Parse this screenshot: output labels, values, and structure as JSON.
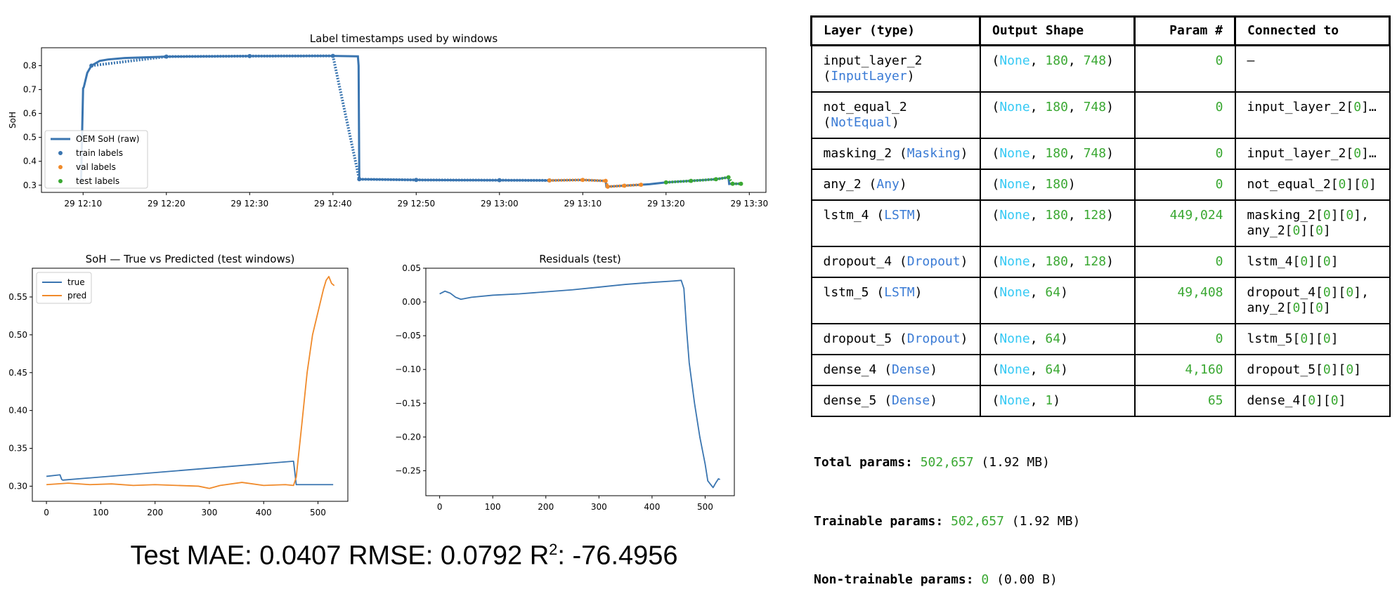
{
  "chart_data": [
    {
      "type": "line",
      "title": "Label timestamps used by windows",
      "xlabel": "",
      "ylabel": "SoH",
      "ylim": [
        0.27,
        0.875
      ],
      "yticks": [
        "0.3",
        "0.4",
        "0.5",
        "0.6",
        "0.7",
        "0.8"
      ],
      "xticks": [
        "29 12:10",
        "29 12:20",
        "29 12:30",
        "29 12:40",
        "29 12:50",
        "29 13:00",
        "29 13:10",
        "29 13:20",
        "29 13:30"
      ],
      "legend": "lower-left",
      "series": [
        {
          "name": "OEM SoH (raw)",
          "x": [
            "12:09:45",
            "12:10:00",
            "12:10:05",
            "12:10:30",
            "12:11:00",
            "12:12:00",
            "12:13:00",
            "12:15:00",
            "12:20:00",
            "12:30:00",
            "12:40:00",
            "12:43:00",
            "12:43:05",
            "12:43:10",
            "12:50:00",
            "13:06:00",
            "13:10:00",
            "13:12:45",
            "13:12:50",
            "13:17:00",
            "13:18:00",
            "13:20:00",
            "13:26:00",
            "13:27:30",
            "13:27:35",
            "13:28:00",
            "13:29:00"
          ],
          "y": [
            0.305,
            0.705,
            0.71,
            0.77,
            0.8,
            0.82,
            0.826,
            0.832,
            0.838,
            0.84,
            0.841,
            0.839,
            0.8,
            0.325,
            0.322,
            0.32,
            0.322,
            0.318,
            0.294,
            0.302,
            0.304,
            0.312,
            0.325,
            0.333,
            0.305,
            0.306,
            0.306
          ]
        },
        {
          "name": "train labels",
          "x": [
            "12:11:00",
            "12:20:00",
            "12:30:00",
            "12:40:00",
            "12:43:10",
            "12:50:00",
            "13:00:00",
            "13:06:00"
          ],
          "y": [
            0.8,
            0.838,
            0.84,
            0.841,
            0.325,
            0.322,
            0.321,
            0.32
          ]
        },
        {
          "name": "val labels",
          "x": [
            "13:06:00",
            "13:10:00",
            "13:12:45",
            "13:13:00",
            "13:15:00",
            "13:17:00"
          ],
          "y": [
            0.32,
            0.322,
            0.318,
            0.294,
            0.298,
            0.302
          ]
        },
        {
          "name": "test labels",
          "x": [
            "13:20:00",
            "13:23:00",
            "13:26:00",
            "13:27:30",
            "13:28:00",
            "13:29:00"
          ],
          "y": [
            0.312,
            0.318,
            0.325,
            0.333,
            0.306,
            0.306
          ]
        }
      ]
    },
    {
      "type": "line",
      "title": "SoH — True vs Predicted (test windows)",
      "xlabel": "",
      "ylabel": "",
      "xlim": [
        -26,
        555
      ],
      "ylim": [
        0.28,
        0.588
      ],
      "xticks": [
        0,
        100,
        200,
        300,
        400,
        500
      ],
      "yticks": [
        0.3,
        0.35,
        0.4,
        0.45,
        0.5,
        0.55
      ],
      "legend": "upper-left",
      "series": [
        {
          "name": "true",
          "x": [
            0,
            25,
            28,
            30,
            455,
            460,
            528
          ],
          "y": [
            0.313,
            0.315,
            0.309,
            0.308,
            0.333,
            0.302,
            0.302
          ]
        },
        {
          "name": "pred",
          "x": [
            0,
            40,
            80,
            120,
            160,
            200,
            240,
            280,
            300,
            320,
            360,
            400,
            440,
            455,
            460,
            470,
            480,
            490,
            500,
            510,
            515,
            520,
            525,
            530
          ],
          "y": [
            0.302,
            0.304,
            0.302,
            0.303,
            0.301,
            0.302,
            0.301,
            0.3,
            0.297,
            0.301,
            0.305,
            0.301,
            0.302,
            0.301,
            0.312,
            0.38,
            0.45,
            0.5,
            0.53,
            0.56,
            0.572,
            0.577,
            0.568,
            0.565
          ]
        }
      ]
    },
    {
      "type": "line",
      "title": "Residuals (test)",
      "xlabel": "",
      "ylabel": "",
      "xlim": [
        -26,
        555
      ],
      "ylim": [
        -0.287,
        0.05
      ],
      "xticks": [
        0,
        100,
        200,
        300,
        400,
        500
      ],
      "yticks": [
        "0.05",
        "0.00",
        "−0.05",
        "−0.10",
        "−0.15",
        "−0.20",
        "−0.25"
      ],
      "series": [
        {
          "name": "",
          "x": [
            0,
            10,
            20,
            30,
            40,
            60,
            100,
            150,
            200,
            250,
            300,
            350,
            400,
            440,
            455,
            460,
            465,
            470,
            480,
            490,
            500,
            505,
            510,
            515,
            520,
            525,
            528
          ],
          "y": [
            0.012,
            0.016,
            0.013,
            0.007,
            0.004,
            0.007,
            0.01,
            0.012,
            0.015,
            0.018,
            0.022,
            0.026,
            0.029,
            0.031,
            0.032,
            0.02,
            -0.04,
            -0.09,
            -0.15,
            -0.2,
            -0.24,
            -0.265,
            -0.27,
            -0.275,
            -0.268,
            -0.262,
            -0.263
          ]
        }
      ]
    }
  ],
  "metrics": {
    "mae_label": "Test MAE: ",
    "mae": "0.0407",
    "rmse_label": "RMSE: ",
    "rmse": "0.0792",
    "r2_label": "R",
    "r2_sup": "2",
    "r2_sep": ": ",
    "r2": "-76.4956"
  },
  "summary": {
    "headers": [
      "Layer (type)",
      "Output Shape",
      "Param #",
      "Connected to"
    ],
    "rows": [
      {
        "name": "input_layer_2",
        "type": "InputLayer",
        "wrap": true,
        "shape": [
          "None",
          "180",
          "748"
        ],
        "params": "0",
        "conn": [
          {
            "t": "–"
          }
        ]
      },
      {
        "name": "not_equal_2",
        "type": "NotEqual",
        "wrap": true,
        "shape": [
          "None",
          "180",
          "748"
        ],
        "params": "0",
        "conn": [
          {
            "t": "input_layer_2["
          },
          {
            "g": "0"
          },
          {
            "t": "]…"
          }
        ]
      },
      {
        "name": "masking_2",
        "type": "Masking",
        "shape": [
          "None",
          "180",
          "748"
        ],
        "params": "0",
        "conn": [
          {
            "t": "input_layer_2["
          },
          {
            "g": "0"
          },
          {
            "t": "]…"
          }
        ]
      },
      {
        "name": "any_2",
        "type": "Any",
        "shape": [
          "None",
          "180"
        ],
        "params": "0",
        "conn": [
          {
            "t": "not_equal_2["
          },
          {
            "g": "0"
          },
          {
            "t": "]["
          },
          {
            "g": "0"
          },
          {
            "t": "]"
          }
        ]
      },
      {
        "name": "lstm_4",
        "type": "LSTM",
        "shape": [
          "None",
          "180",
          "128"
        ],
        "params": "449,024",
        "conn": [
          {
            "t": "masking_2["
          },
          {
            "g": "0"
          },
          {
            "t": "]["
          },
          {
            "g": "0"
          },
          {
            "t": "],"
          },
          {
            "br": true
          },
          {
            "t": "any_2["
          },
          {
            "g": "0"
          },
          {
            "t": "]["
          },
          {
            "g": "0"
          },
          {
            "t": "]"
          }
        ]
      },
      {
        "name": "dropout_4",
        "type": "Dropout",
        "shape": [
          "None",
          "180",
          "128"
        ],
        "params": "0",
        "conn": [
          {
            "t": "lstm_4["
          },
          {
            "g": "0"
          },
          {
            "t": "]["
          },
          {
            "g": "0"
          },
          {
            "t": "]"
          }
        ]
      },
      {
        "name": "lstm_5",
        "type": "LSTM",
        "shape": [
          "None",
          "64"
        ],
        "params": "49,408",
        "conn": [
          {
            "t": "dropout_4["
          },
          {
            "g": "0"
          },
          {
            "t": "]["
          },
          {
            "g": "0"
          },
          {
            "t": "],"
          },
          {
            "br": true
          },
          {
            "t": "any_2["
          },
          {
            "g": "0"
          },
          {
            "t": "]["
          },
          {
            "g": "0"
          },
          {
            "t": "]"
          }
        ]
      },
      {
        "name": "dropout_5",
        "type": "Dropout",
        "shape": [
          "None",
          "64"
        ],
        "params": "0",
        "conn": [
          {
            "t": "lstm_5["
          },
          {
            "g": "0"
          },
          {
            "t": "]["
          },
          {
            "g": "0"
          },
          {
            "t": "]"
          }
        ]
      },
      {
        "name": "dense_4",
        "type": "Dense",
        "shape": [
          "None",
          "64"
        ],
        "params": "4,160",
        "conn": [
          {
            "t": "dropout_5["
          },
          {
            "g": "0"
          },
          {
            "t": "]["
          },
          {
            "g": "0"
          },
          {
            "t": "]"
          }
        ]
      },
      {
        "name": "dense_5",
        "type": "Dense",
        "shape": [
          "None",
          "1"
        ],
        "params": "65",
        "conn": [
          {
            "t": "dense_4["
          },
          {
            "g": "0"
          },
          {
            "t": "]["
          },
          {
            "g": "0"
          },
          {
            "t": "]"
          }
        ]
      }
    ]
  },
  "totals": [
    {
      "label": "Total params: ",
      "value": "502,657",
      "unit": " (1.92 MB)"
    },
    {
      "label": "Trainable params: ",
      "value": "502,657",
      "unit": " (1.92 MB)"
    },
    {
      "label": "Non-trainable params: ",
      "value": "0",
      "unit": " (0.00 B)"
    }
  ],
  "colors": {
    "blue": "#3a75b0",
    "orange": "#f08a2a",
    "green": "#3aa832",
    "cyan": "#35c9f4",
    "type_blue": "#3a7bd5"
  }
}
